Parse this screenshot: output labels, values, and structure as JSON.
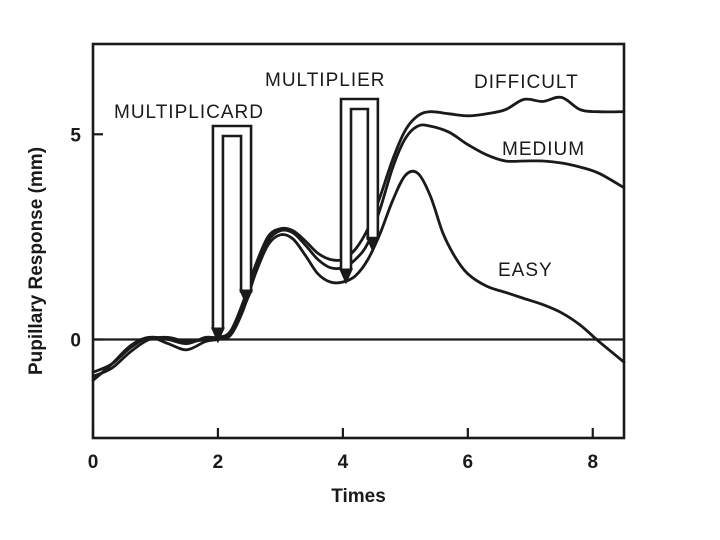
{
  "chart_data": {
    "type": "line",
    "title": "",
    "xlabel": "Times",
    "ylabel": "Pupillary Response (mm)",
    "xlim": [
      0,
      8.5
    ],
    "ylim": [
      -2.4,
      7.2
    ],
    "xticks": [
      0,
      2,
      4,
      6,
      8
    ],
    "yticks": [
      0,
      5
    ],
    "grid": false,
    "reference_line_y": 0,
    "series": [
      {
        "name": "DIFFICULT",
        "x": [
          0,
          0.3,
          0.6,
          0.9,
          1.2,
          1.5,
          1.8,
          2.0,
          2.2,
          2.4,
          2.6,
          2.8,
          3.0,
          3.2,
          3.4,
          3.6,
          3.8,
          4.0,
          4.2,
          4.4,
          4.6,
          4.8,
          5.0,
          5.2,
          5.4,
          5.7,
          6.0,
          6.3,
          6.6,
          6.9,
          7.2,
          7.5,
          7.8,
          8.1,
          8.5
        ],
        "values": [
          -0.8,
          -0.6,
          -0.2,
          0.05,
          0.0,
          -0.1,
          0.05,
          0.05,
          0.2,
          0.9,
          1.8,
          2.5,
          2.7,
          2.65,
          2.4,
          2.1,
          1.95,
          1.95,
          2.2,
          2.7,
          3.5,
          4.4,
          5.1,
          5.45,
          5.55,
          5.5,
          5.45,
          5.5,
          5.6,
          5.85,
          5.8,
          5.9,
          5.6,
          5.55,
          5.55
        ]
      },
      {
        "name": "MEDIUM",
        "x": [
          0,
          0.3,
          0.6,
          0.9,
          1.2,
          1.5,
          1.8,
          2.0,
          2.2,
          2.4,
          2.6,
          2.8,
          3.0,
          3.2,
          3.4,
          3.6,
          3.8,
          4.0,
          4.2,
          4.4,
          4.6,
          4.8,
          5.0,
          5.2,
          5.4,
          5.7,
          6.0,
          6.3,
          6.6,
          6.9,
          7.2,
          7.5,
          7.8,
          8.1,
          8.5
        ],
        "values": [
          -0.9,
          -0.7,
          -0.3,
          0.0,
          0.05,
          -0.05,
          0.0,
          0.05,
          0.15,
          0.8,
          1.7,
          2.4,
          2.65,
          2.6,
          2.3,
          1.95,
          1.75,
          1.75,
          1.95,
          2.35,
          3.2,
          4.2,
          4.9,
          5.2,
          5.2,
          5.05,
          4.75,
          4.5,
          4.35,
          4.35,
          4.35,
          4.3,
          4.2,
          4.05,
          3.7
        ]
      },
      {
        "name": "EASY",
        "x": [
          0,
          0.3,
          0.6,
          0.9,
          1.2,
          1.5,
          1.8,
          2.0,
          2.2,
          2.4,
          2.6,
          2.8,
          3.0,
          3.2,
          3.4,
          3.6,
          3.8,
          4.0,
          4.2,
          4.4,
          4.6,
          4.8,
          5.0,
          5.2,
          5.4,
          5.6,
          5.8,
          6.0,
          6.3,
          6.6,
          6.9,
          7.2,
          7.5,
          7.8,
          8.1,
          8.5
        ],
        "values": [
          -1.0,
          -0.6,
          -0.15,
          0.05,
          -0.1,
          -0.25,
          -0.05,
          0.0,
          0.1,
          0.7,
          1.6,
          2.3,
          2.55,
          2.45,
          2.05,
          1.6,
          1.4,
          1.4,
          1.55,
          1.95,
          2.6,
          3.4,
          4.0,
          4.05,
          3.5,
          2.6,
          2.0,
          1.6,
          1.3,
          1.15,
          1.0,
          0.85,
          0.65,
          0.35,
          -0.05,
          -0.55
        ]
      }
    ],
    "annotations": [
      {
        "text": "MULTIPLICARD",
        "arrow_from_x": 2.0,
        "arrow_to_x": 2.45
      },
      {
        "text": "MULTIPLIER",
        "arrow_from_x": 4.05,
        "arrow_to_x": 4.48
      }
    ]
  }
}
